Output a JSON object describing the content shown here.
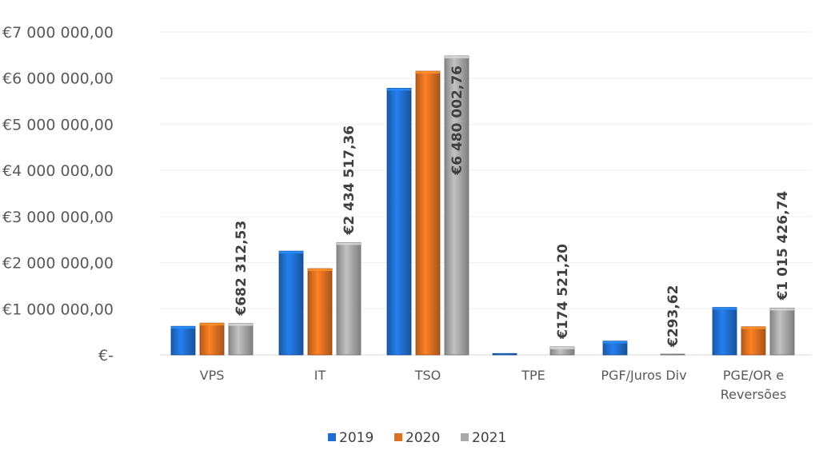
{
  "chart_data": {
    "type": "bar",
    "categories": [
      [
        "VPS"
      ],
      [
        "IT"
      ],
      [
        "TSO"
      ],
      [
        "TPE"
      ],
      [
        "PGF/Juros Div"
      ],
      [
        "PGE/OR e",
        "Reversões"
      ]
    ],
    "series": [
      {
        "name": "2019",
        "color": "#1f6fd0",
        "values": [
          620000,
          2250000,
          5780000,
          30000,
          300000,
          1030000
        ]
      },
      {
        "name": "2020",
        "color": "#e07020",
        "values": [
          690000,
          1870000,
          6150000,
          0,
          0,
          610000
        ]
      },
      {
        "name": "2021",
        "color": "#a9a9a9",
        "values": [
          682312.53,
          2434517.36,
          6480002.76,
          174521.2,
          293.62,
          1015426.74
        ]
      }
    ],
    "data_labels": [
      {
        "category": 0,
        "series": 2,
        "text": "€682 312,53"
      },
      {
        "category": 1,
        "series": 2,
        "text": "€2 434 517,36"
      },
      {
        "category": 2,
        "series": 2,
        "text": "€6 480 002,76"
      },
      {
        "category": 3,
        "series": 2,
        "text": "€174 521,20"
      },
      {
        "category": 4,
        "series": 2,
        "text": "€293,62"
      },
      {
        "category": 5,
        "series": 2,
        "text": "€1 015 426,74"
      }
    ],
    "y_ticks": [
      {
        "value": 0,
        "label": "€-"
      },
      {
        "value": 1000000,
        "label": "€1 000 000,00"
      },
      {
        "value": 2000000,
        "label": "€2 000 000,00"
      },
      {
        "value": 3000000,
        "label": "€3 000 000,00"
      },
      {
        "value": 4000000,
        "label": "€4 000 000,00"
      },
      {
        "value": 5000000,
        "label": "€5 000 000,00"
      },
      {
        "value": 6000000,
        "label": "€6 000 000,00"
      },
      {
        "value": 7000000,
        "label": "€7 000 000,00"
      }
    ],
    "ylim": [
      0,
      7000000
    ],
    "grid": true,
    "legend_position": "bottom"
  }
}
